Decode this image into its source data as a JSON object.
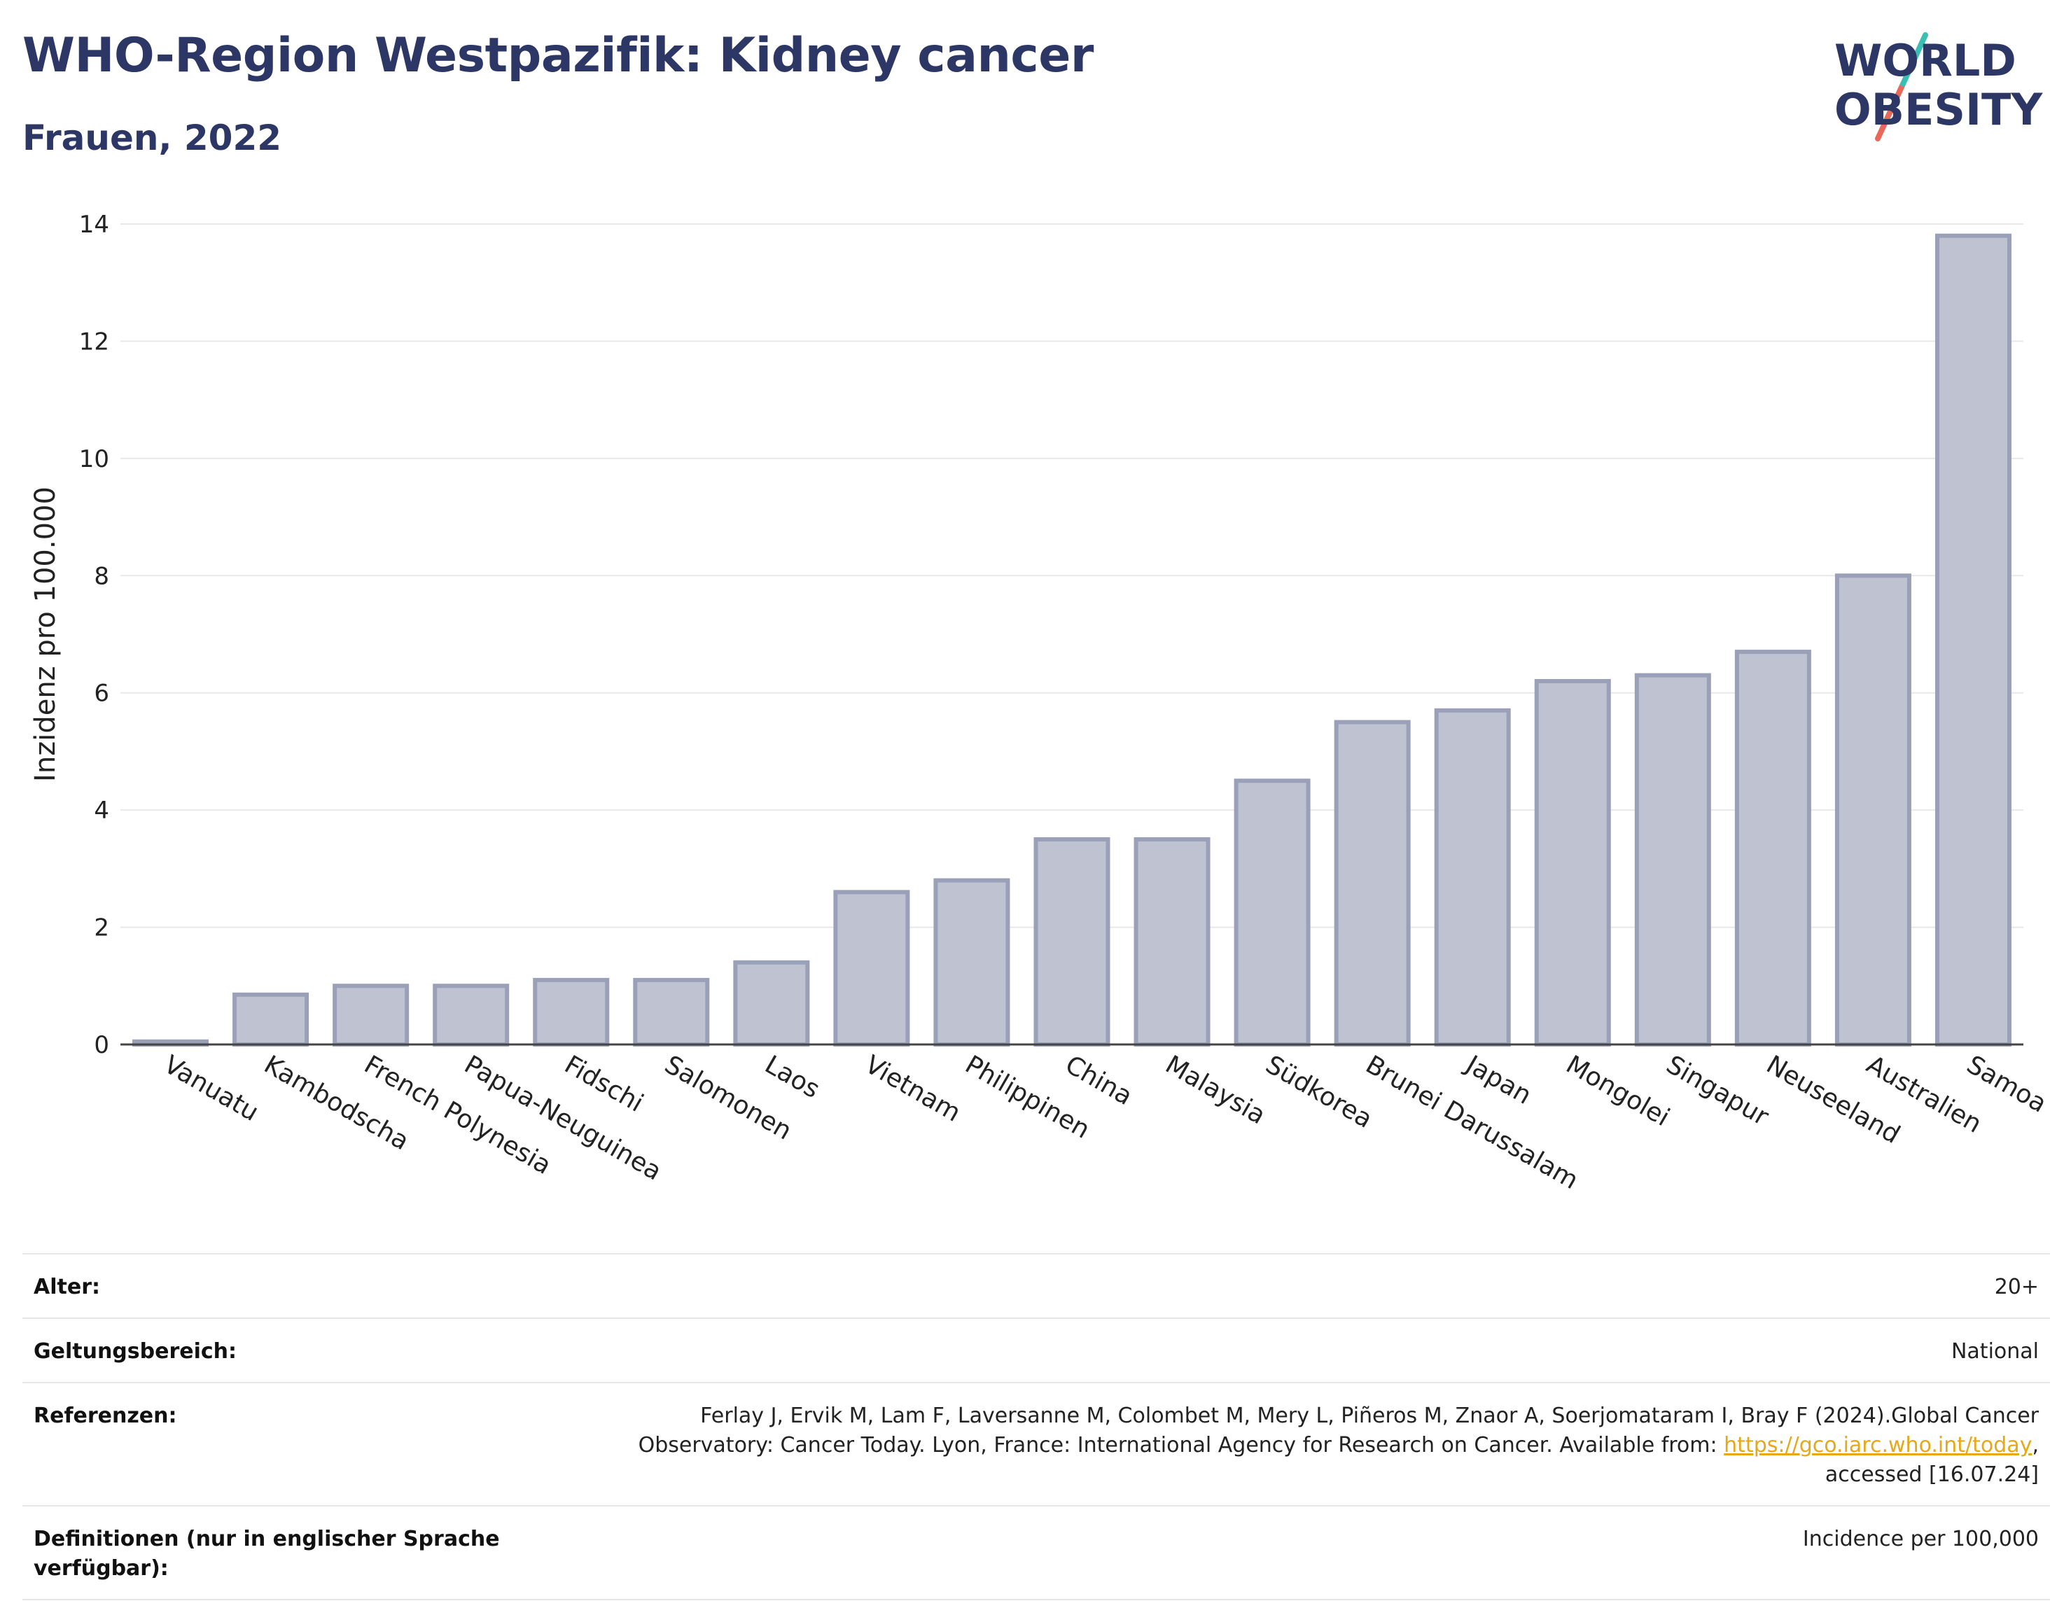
{
  "header": {
    "title": "WHO-Region Westpazifik: Kidney cancer",
    "subtitle": "Frauen, 2022"
  },
  "logo": {
    "line1": "WORLD",
    "line2": "OBESITY",
    "colors": {
      "text": "#2c3766",
      "slash_red": "#e8685a",
      "slash_teal": "#3bbfb3"
    }
  },
  "chart_data": {
    "type": "bar",
    "ylabel": "Inzidenz pro 100.000",
    "ylim": [
      0,
      14
    ],
    "yticks": [
      0,
      2,
      4,
      6,
      8,
      10,
      12,
      14
    ],
    "grid": true,
    "bar_color": "#bfc3d1",
    "bar_border": "#9aa0b8",
    "categories": [
      "Vanuatu",
      "Kambodscha",
      "French Polynesia",
      "Papua-Neuguinea",
      "Fidschi",
      "Salomonen",
      "Laos",
      "Vietnam",
      "Philippinen",
      "China",
      "Malaysia",
      "Südkorea",
      "Brunei Darussalam",
      "Japan",
      "Mongolei",
      "Singapur",
      "Neuseeland",
      "Australien",
      "Samoa"
    ],
    "values": [
      0.05,
      0.85,
      1.0,
      1.0,
      1.1,
      1.1,
      1.4,
      2.6,
      2.8,
      3.5,
      3.5,
      4.5,
      5.5,
      5.7,
      6.2,
      6.3,
      6.7,
      8.0,
      13.8
    ]
  },
  "meta": {
    "rows": [
      {
        "label": "Alter:",
        "value": "20+"
      },
      {
        "label": "Geltungsbereich:",
        "value": "National"
      }
    ],
    "references": {
      "label": "Referenzen:",
      "text_before": "Ferlay J, Ervik M, Lam F, Laversanne M, Colombet M, Mery L, Piñeros M, Znaor A, Soerjomataram I, Bray F (2024).Global Cancer Observatory: Cancer Today. Lyon, France: International Agency for Research on Cancer. Available from: ",
      "link": "https://gco.iarc.who.int/today",
      "text_after": ", accessed [16.07.24]"
    },
    "definitions": {
      "label": "Definitionen (nur in englischer Sprache verfügbar):",
      "value": "Incidence per 100,000"
    }
  }
}
